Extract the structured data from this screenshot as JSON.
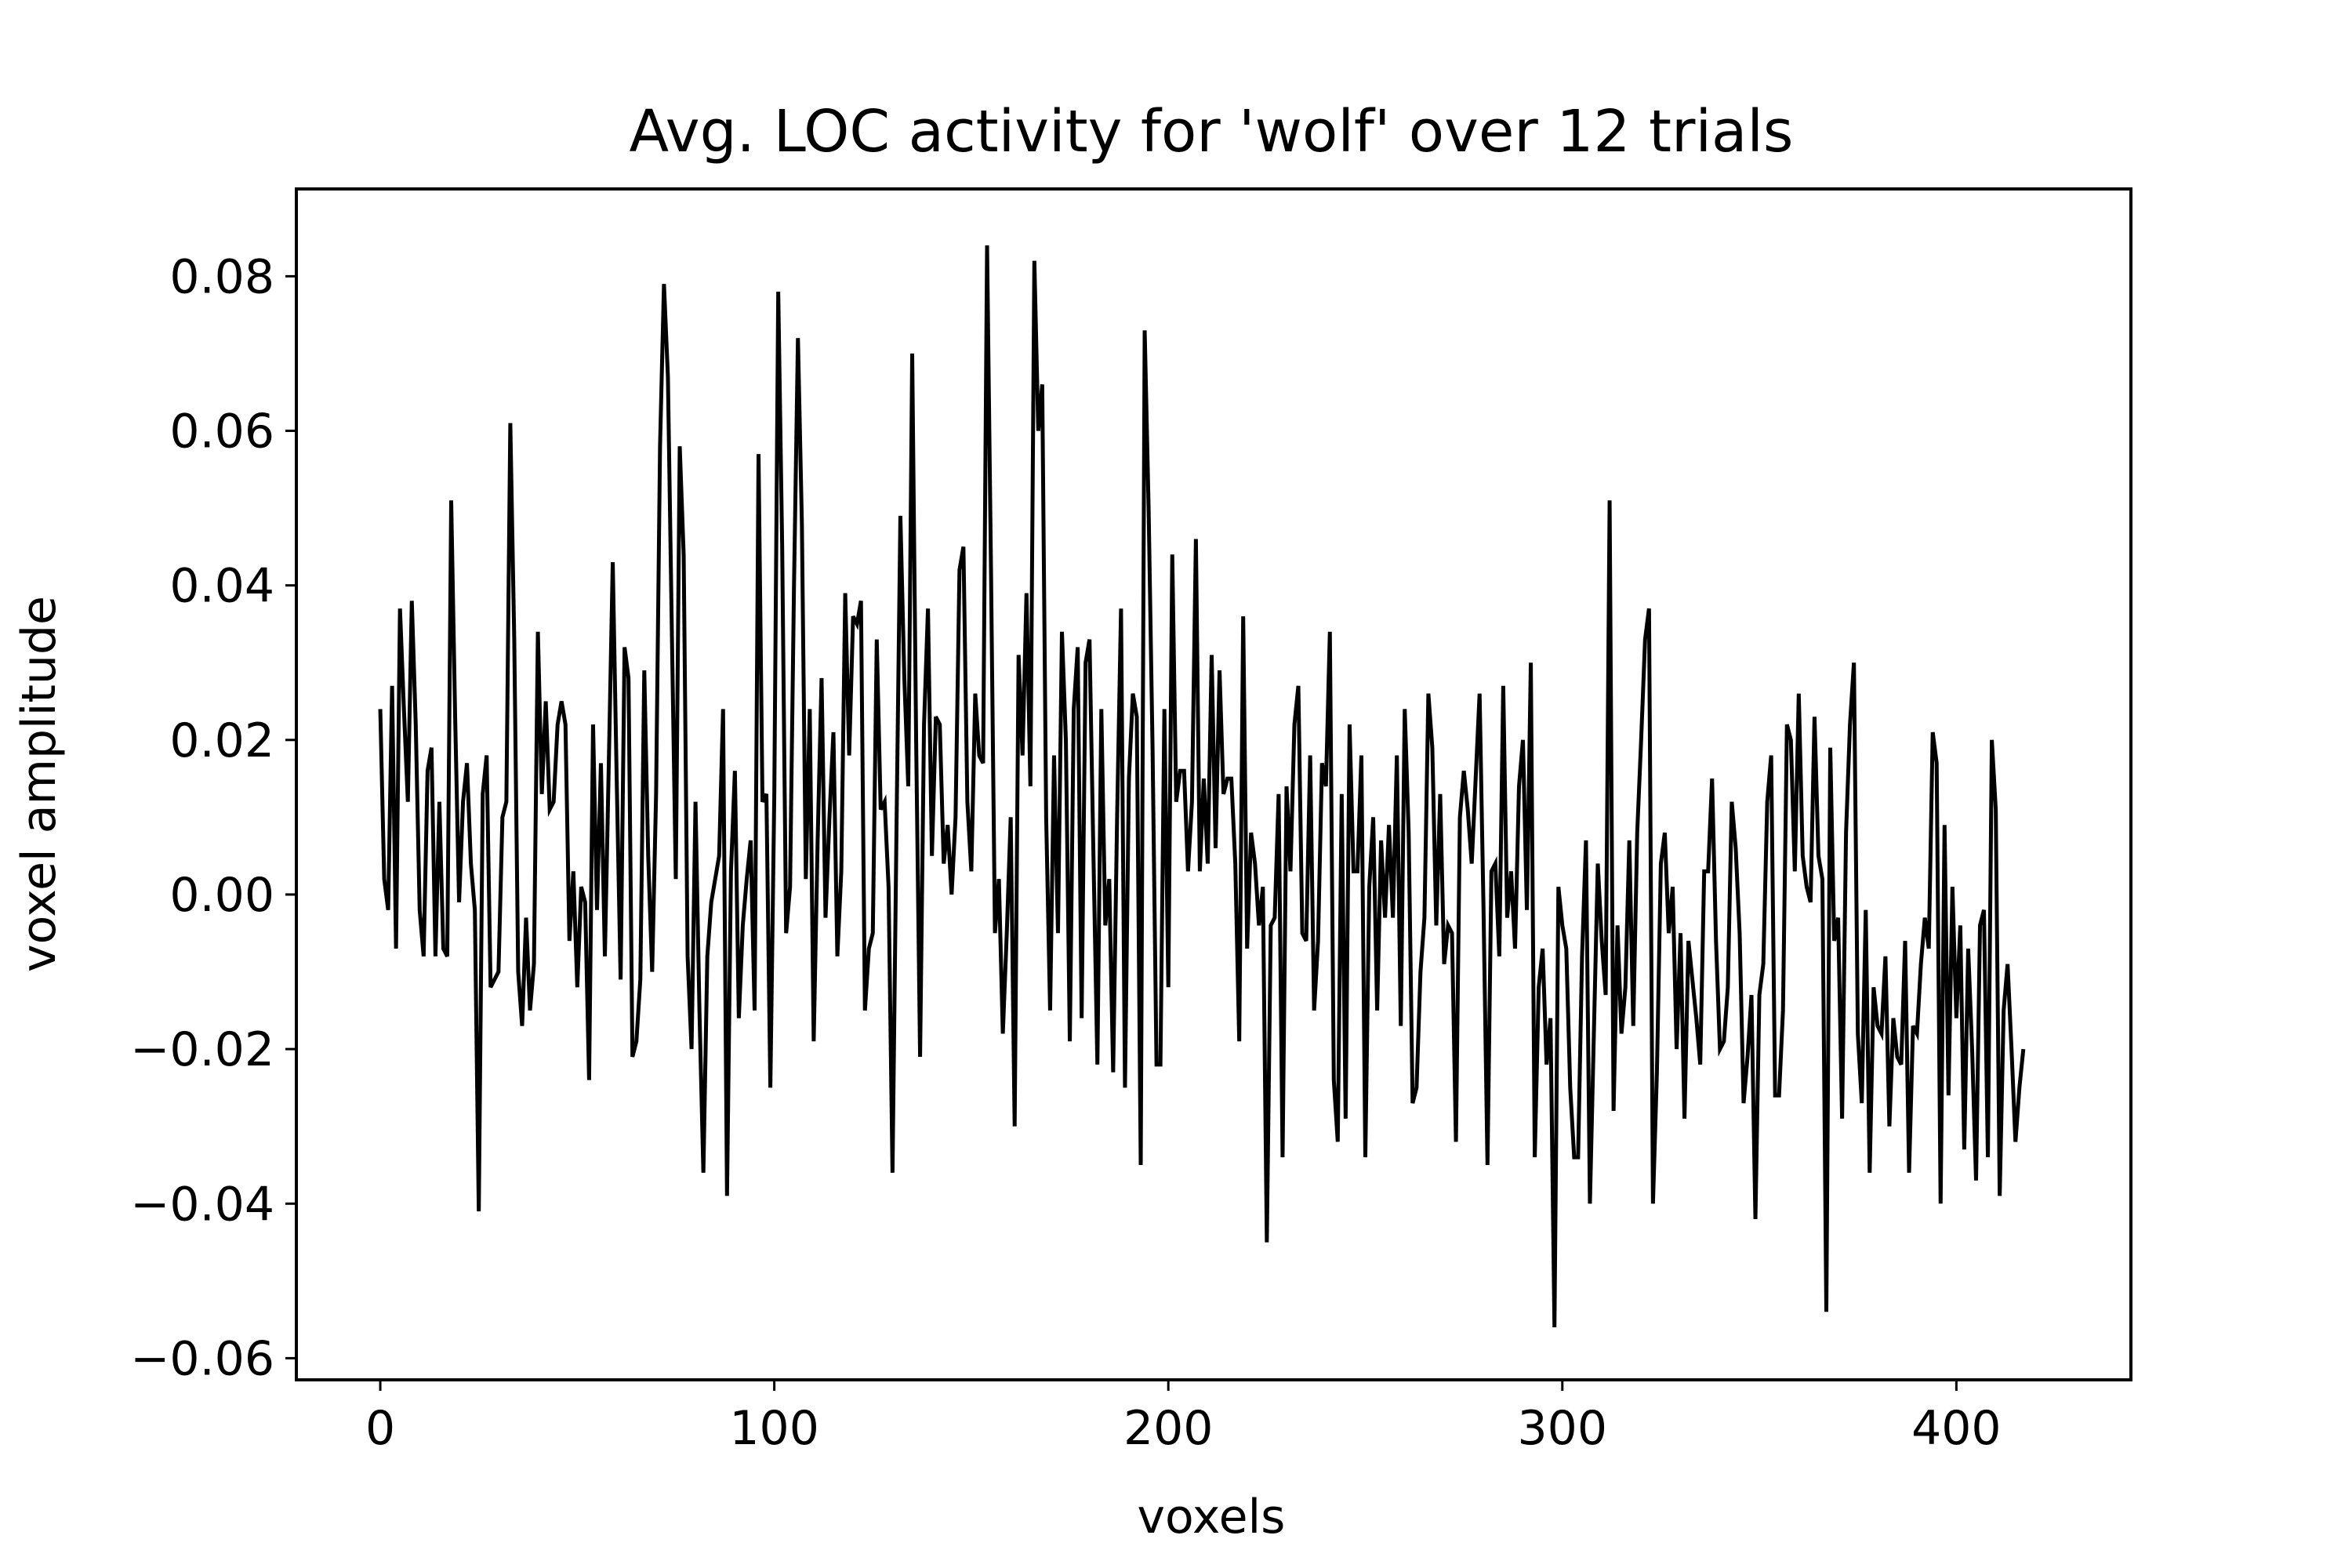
{
  "chart_data": {
    "type": "line",
    "title": "Avg. LOC activity for 'wolf' over 12 trials",
    "xlabel": "voxels",
    "ylabel": "voxel amplitude",
    "xlim": [
      -21.3,
      444.3
    ],
    "ylim": [
      -0.0628,
      0.0913
    ],
    "xticks": [
      0,
      100,
      200,
      300,
      400
    ],
    "xtick_labels": [
      "0",
      "100",
      "200",
      "300",
      "400"
    ],
    "yticks": [
      -0.06,
      -0.04,
      -0.02,
      0.0,
      0.02,
      0.04,
      0.06,
      0.08
    ],
    "ytick_labels": [
      "−0.06",
      "−0.04",
      "−0.02",
      "0.00",
      "0.02",
      "0.04",
      "0.06",
      "0.08"
    ],
    "grid": false,
    "legend": "none",
    "line_color": "#000000",
    "series": [
      {
        "x_start": 0,
        "x_step": 1,
        "values": [
          0.024,
          0.002,
          -0.002,
          0.027,
          -0.007,
          0.037,
          0.024,
          0.012,
          0.038,
          0.022,
          -0.002,
          -0.008,
          0.016,
          0.019,
          -0.008,
          0.012,
          -0.007,
          -0.008,
          0.051,
          0.023,
          -0.001,
          0.012,
          0.017,
          0.004,
          -0.002,
          -0.041,
          0.013,
          0.018,
          -0.012,
          -0.011,
          -0.01,
          0.01,
          0.012,
          0.061,
          0.033,
          -0.01,
          -0.017,
          -0.003,
          -0.015,
          -0.009,
          0.034,
          0.013,
          0.025,
          0.011,
          0.012,
          0.022,
          0.025,
          0.022,
          -0.006,
          0.003,
          -0.012,
          0.001,
          -0.001,
          -0.024,
          0.022,
          -0.002,
          0.017,
          -0.008,
          0.017,
          0.043,
          0.015,
          -0.011,
          0.032,
          0.028,
          -0.021,
          -0.019,
          -0.011,
          0.029,
          0.005,
          -0.01,
          0.013,
          0.058,
          0.079,
          0.067,
          0.034,
          0.002,
          0.058,
          0.044,
          -0.008,
          -0.02,
          0.012,
          -0.015,
          -0.036,
          -0.008,
          -0.001,
          0.002,
          0.005,
          0.024,
          -0.039,
          0.003,
          0.016,
          -0.016,
          -0.004,
          0.002,
          0.007,
          -0.015,
          0.057,
          0.012,
          0.013,
          -0.025,
          0.013,
          0.078,
          0.045,
          -0.005,
          0.001,
          0.04,
          0.072,
          0.048,
          0.002,
          0.024,
          -0.019,
          0.007,
          0.028,
          -0.003,
          0.01,
          0.021,
          -0.008,
          0.003,
          0.039,
          0.018,
          0.036,
          0.035,
          0.038,
          -0.015,
          -0.007,
          -0.005,
          0.033,
          0.011,
          0.012,
          0.001,
          -0.036,
          0.008,
          0.049,
          0.028,
          0.014,
          0.07,
          0.02,
          -0.021,
          0.022,
          0.037,
          0.005,
          0.023,
          0.022,
          0.004,
          0.009,
          0.0,
          0.01,
          0.042,
          0.045,
          0.012,
          0.003,
          0.026,
          0.018,
          0.017,
          0.084,
          0.042,
          -0.005,
          0.002,
          -0.018,
          -0.005,
          0.01,
          -0.03,
          0.031,
          0.018,
          0.039,
          0.014,
          0.082,
          0.06,
          0.066,
          0.01,
          -0.015,
          0.018,
          -0.005,
          0.034,
          0.02,
          -0.019,
          0.024,
          0.032,
          -0.016,
          0.03,
          0.033,
          0.005,
          -0.022,
          0.024,
          -0.004,
          0.002,
          -0.023,
          0.01,
          0.037,
          -0.025,
          0.015,
          0.026,
          0.023,
          -0.035,
          0.073,
          0.05,
          0.019,
          -0.022,
          -0.022,
          0.024,
          -0.012,
          0.044,
          0.012,
          0.016,
          0.016,
          0.003,
          0.012,
          0.046,
          0.003,
          0.015,
          0.004,
          0.031,
          0.006,
          0.029,
          0.013,
          0.015,
          0.015,
          0.004,
          -0.019,
          0.036,
          -0.007,
          0.008,
          0.004,
          -0.004,
          0.001,
          -0.045,
          -0.004,
          -0.003,
          0.013,
          -0.034,
          0.014,
          0.003,
          0.022,
          0.027,
          -0.005,
          -0.006,
          0.018,
          -0.015,
          -0.006,
          0.017,
          0.014,
          0.034,
          -0.024,
          -0.032,
          0.013,
          -0.029,
          0.022,
          0.003,
          0.003,
          0.018,
          -0.034,
          0.001,
          0.01,
          -0.015,
          0.007,
          -0.003,
          0.009,
          -0.003,
          0.018,
          -0.017,
          0.024,
          0.008,
          -0.027,
          -0.025,
          -0.01,
          -0.003,
          0.026,
          0.019,
          -0.004,
          0.013,
          -0.009,
          -0.004,
          -0.005,
          -0.032,
          0.01,
          0.016,
          0.011,
          0.004,
          0.015,
          0.026,
          -0.002,
          -0.035,
          0.003,
          0.004,
          -0.008,
          0.027,
          -0.003,
          0.003,
          -0.007,
          0.014,
          0.02,
          -0.002,
          0.03,
          -0.034,
          -0.012,
          -0.007,
          -0.022,
          -0.016,
          -0.056,
          0.001,
          -0.004,
          -0.007,
          -0.025,
          -0.034,
          -0.034,
          -0.008,
          0.007,
          -0.04,
          -0.018,
          0.004,
          -0.006,
          -0.013,
          0.051,
          -0.028,
          -0.004,
          -0.018,
          -0.012,
          0.007,
          -0.017,
          0.008,
          0.02,
          0.033,
          0.037,
          -0.04,
          -0.023,
          0.004,
          0.008,
          -0.005,
          0.001,
          -0.02,
          -0.005,
          -0.029,
          -0.006,
          -0.011,
          -0.016,
          -0.022,
          0.003,
          0.003,
          0.015,
          -0.006,
          -0.02,
          -0.019,
          -0.012,
          0.012,
          0.006,
          -0.005,
          -0.027,
          -0.021,
          -0.013,
          -0.042,
          -0.013,
          -0.009,
          0.012,
          0.018,
          -0.026,
          -0.026,
          -0.015,
          0.022,
          0.02,
          0.003,
          0.026,
          0.005,
          0.001,
          -0.001,
          0.023,
          0.005,
          0.002,
          -0.054,
          0.019,
          -0.006,
          -0.003,
          -0.029,
          0.008,
          0.022,
          0.03,
          -0.018,
          -0.027,
          -0.002,
          -0.036,
          -0.012,
          -0.017,
          -0.018,
          -0.008,
          -0.03,
          -0.016,
          -0.021,
          -0.022,
          -0.006,
          -0.036,
          -0.017,
          -0.018,
          -0.009,
          -0.003,
          -0.007,
          0.021,
          0.017,
          -0.04,
          0.009,
          -0.026,
          0.001,
          -0.016,
          -0.004,
          -0.033,
          -0.007,
          -0.02,
          -0.037,
          -0.004,
          -0.002,
          -0.034,
          0.02,
          0.011,
          -0.039,
          -0.015,
          -0.009,
          -0.02,
          -0.032,
          -0.025,
          -0.02
        ]
      }
    ]
  }
}
